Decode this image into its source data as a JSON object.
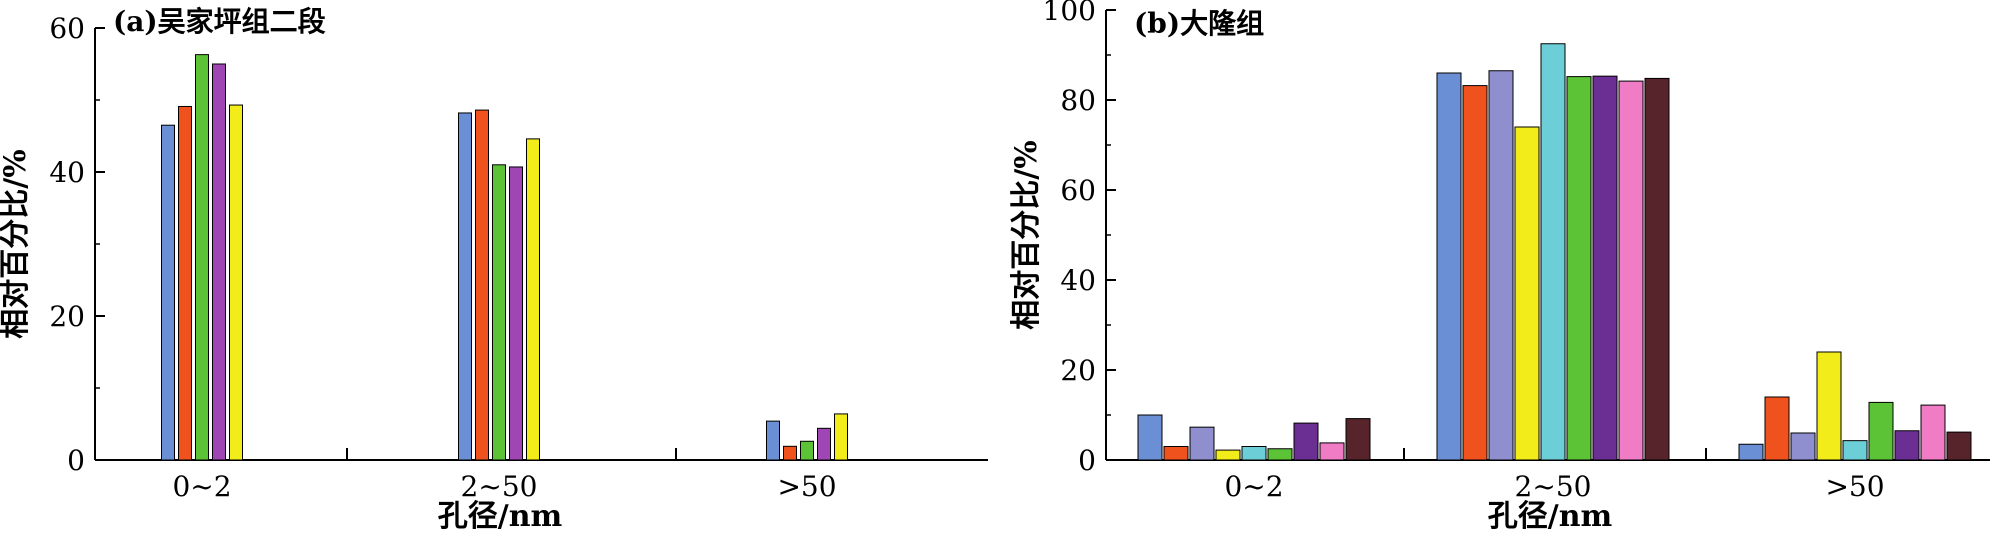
{
  "chart_data": [
    {
      "type": "bar",
      "title": "(a)吴家坪组二段",
      "xlabel": "孔径/nm",
      "ylabel": "相对百分比/%",
      "categories": [
        "0~2",
        "2~50",
        ">50"
      ],
      "ylim": [
        0,
        60
      ],
      "yticks": [
        0,
        20,
        40,
        60
      ],
      "grid": false,
      "series": [
        {
          "color": "#6a8fd4",
          "values": [
            46.5,
            48.2,
            5.4
          ]
        },
        {
          "color": "#f0521e",
          "values": [
            49.1,
            48.6,
            1.9
          ]
        },
        {
          "color": "#5cc236",
          "values": [
            56.3,
            41.0,
            2.6
          ]
        },
        {
          "color": "#a046b4",
          "values": [
            55.0,
            40.7,
            4.4
          ]
        },
        {
          "color": "#f2ec1a",
          "values": [
            49.3,
            44.6,
            6.4
          ]
        }
      ]
    },
    {
      "type": "bar",
      "title": "(b)大隆组",
      "xlabel": "孔径/nm",
      "ylabel": "相对百分比/%",
      "categories": [
        "0~2",
        "2~50",
        ">50"
      ],
      "ylim": [
        0,
        100
      ],
      "yticks": [
        0,
        20,
        40,
        60,
        80,
        100
      ],
      "grid": false,
      "series": [
        {
          "color": "#6a8fd4",
          "values": [
            10.0,
            86.0,
            3.5
          ]
        },
        {
          "color": "#f0521e",
          "values": [
            3.0,
            83.2,
            14.0
          ]
        },
        {
          "color": "#8f8fd0",
          "values": [
            7.3,
            86.5,
            6.0
          ]
        },
        {
          "color": "#f2ec1a",
          "values": [
            2.2,
            74.0,
            24.0
          ]
        },
        {
          "color": "#6ccfd8",
          "values": [
            3.0,
            92.5,
            4.3
          ]
        },
        {
          "color": "#5cc236",
          "values": [
            2.5,
            85.2,
            12.8
          ]
        },
        {
          "color": "#6b2f94",
          "values": [
            8.2,
            85.3,
            6.5
          ]
        },
        {
          "color": "#f07cc6",
          "values": [
            3.8,
            84.2,
            12.2
          ]
        },
        {
          "color": "#56242a",
          "values": [
            9.2,
            84.8,
            6.2
          ]
        }
      ]
    }
  ]
}
